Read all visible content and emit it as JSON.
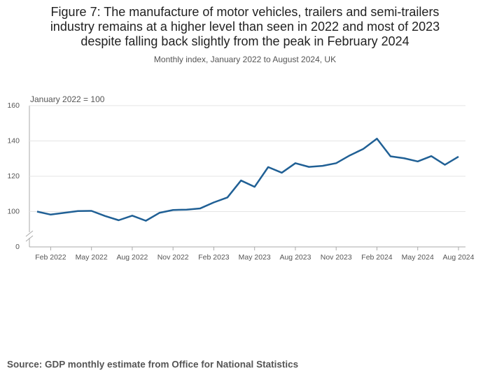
{
  "chart_data": {
    "type": "line",
    "title_lines": [
      "Figure 7: The manufacture of motor vehicles, trailers and semi-trailers",
      "industry remains at a higher level than seen in 2022 and most of 2023",
      "despite falling back slightly from the peak in February 2024"
    ],
    "subtitle": "Monthly index, January 2022 to August 2024, UK",
    "annotation": "January 2022 = 100",
    "source": "Source: GDP monthly estimate from Office for National Statistics",
    "categories": [
      null,
      "Feb 2022",
      null,
      null,
      "May 2022",
      null,
      null,
      "Aug 2022",
      null,
      null,
      "Nov 2022",
      null,
      null,
      "Feb 2023",
      null,
      null,
      "May 2023",
      null,
      null,
      "Aug 2023",
      null,
      null,
      "Nov 2023",
      null,
      null,
      "Feb 2024",
      null,
      null,
      "May 2024",
      null,
      null,
      "Aug 2024"
    ],
    "series": [
      {
        "name": "Index",
        "color": "#206095",
        "values": [
          100,
          98.3,
          99.3,
          100.3,
          100.4,
          97.5,
          95.1,
          97.7,
          94.8,
          99.3,
          100.9,
          101.1,
          101.8,
          105.2,
          108,
          117.6,
          114,
          125.2,
          122,
          127.4,
          125.3,
          125.9,
          127.4,
          131.8,
          135.5,
          141.3,
          131.3,
          130.2,
          128.4,
          131.4,
          126.5,
          131.1
        ]
      }
    ],
    "ylim": [
      0,
      160
    ],
    "axis_break": [
      0,
      80
    ],
    "yticks": [
      0,
      100,
      120,
      140,
      160
    ],
    "grid": true
  }
}
